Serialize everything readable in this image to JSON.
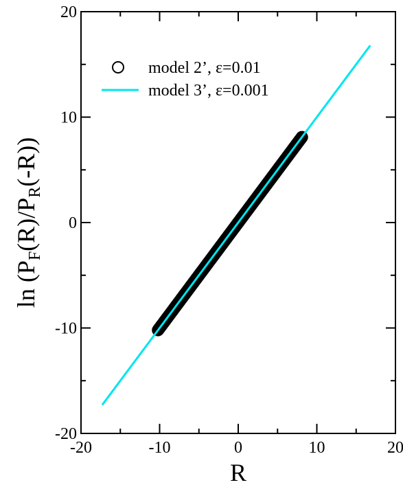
{
  "chart_data": {
    "type": "scatter",
    "xlabel": "R",
    "ylabel": {
      "parts": [
        "ln (P",
        "F",
        "(R)/P",
        "R",
        "(-R))"
      ]
    },
    "xlim": [
      -20,
      20
    ],
    "ylim": [
      -20,
      20
    ],
    "x_ticks": [
      -20,
      -10,
      0,
      10,
      20
    ],
    "y_ticks": [
      -20,
      -10,
      0,
      10,
      20
    ],
    "x_tick_labels": [
      "-20",
      "-10",
      "0",
      "10",
      "20"
    ],
    "y_tick_labels": [
      "-20",
      "-10",
      "0",
      "10",
      "20"
    ],
    "grid": false,
    "legend_position": "top-left",
    "series": [
      {
        "name": "model 2’,  ε=0.01",
        "kind": "scatter",
        "marker": "open-circle",
        "color": "#000000",
        "x_range": [
          -10.2,
          8.1
        ],
        "slope": 1.0,
        "n_points": 200
      },
      {
        "name": "model 3’,  ε=0.001",
        "kind": "line",
        "color": "#00e5ee",
        "x": [
          -17.3,
          16.8
        ],
        "y": [
          -17.3,
          16.8
        ]
      }
    ]
  }
}
